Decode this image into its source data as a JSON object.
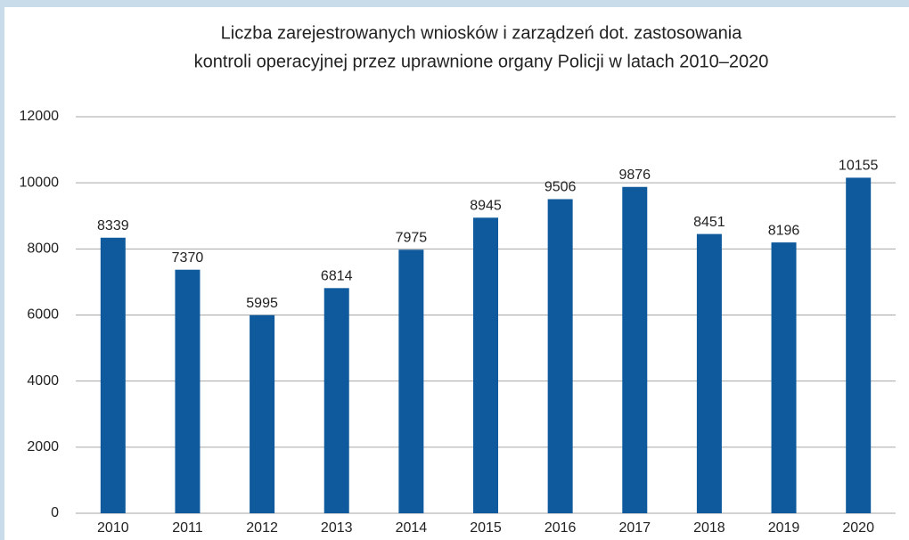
{
  "chart_data": {
    "type": "bar",
    "title": [
      "Liczba zarejestrowanych wniosków i zarządzeń dot. zastosowania",
      "kontroli operacyjnej przez uprawnione organy Policji w latach 2010–2020"
    ],
    "categories": [
      "2010",
      "2011",
      "2012",
      "2013",
      "2014",
      "2015",
      "2016",
      "2017",
      "2018",
      "2019",
      "2020"
    ],
    "values": [
      8339,
      7370,
      5995,
      6814,
      7975,
      8945,
      9506,
      9876,
      8451,
      8196,
      10155
    ],
    "color": "#0f5a9c",
    "ylim": [
      0,
      12000
    ],
    "yticks": [
      0,
      2000,
      4000,
      6000,
      8000,
      10000,
      12000
    ],
    "grid": true
  }
}
